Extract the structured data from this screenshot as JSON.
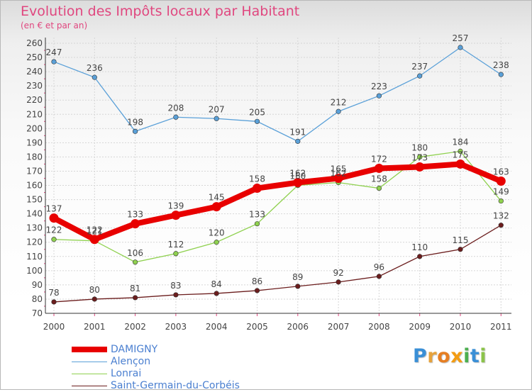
{
  "header": {
    "title": "Evolution des Impôts locaux par Habitant",
    "subtitle": "(en € et par an)"
  },
  "logo": {
    "letters": [
      "P",
      "r",
      "o",
      "x",
      "i",
      "t",
      "i"
    ],
    "colors": [
      "#3a8fd6",
      "#e6a23c",
      "#e67e22",
      "#f39c12",
      "#4caf50",
      "#3a8fd6",
      "#8bc34a"
    ]
  },
  "chart_data": {
    "type": "line",
    "title": "Evolution des Impôts locaux par Habitant",
    "subtitle": "(en € et par an)",
    "xlabel": "",
    "ylabel": "",
    "categories": [
      "2000",
      "2001",
      "2002",
      "2003",
      "2004",
      "2005",
      "2006",
      "2007",
      "2008",
      "2009",
      "2010",
      "2011"
    ],
    "ylim": [
      70,
      260
    ],
    "yticks": [
      70,
      80,
      90,
      100,
      110,
      120,
      130,
      140,
      150,
      160,
      170,
      180,
      190,
      200,
      210,
      220,
      230,
      240,
      250,
      260
    ],
    "grid": true,
    "legend_position": "bottom-left",
    "series": [
      {
        "name": "Saint-Germain-du-Corbéis",
        "color": "#6b1d1d",
        "emphasis": false,
        "values": [
          78,
          80,
          81,
          83,
          84,
          86,
          89,
          92,
          96,
          110,
          115,
          132
        ]
      },
      {
        "name": "Lonrai",
        "color": "#8fd14f",
        "emphasis": false,
        "values": [
          122,
          121,
          106,
          112,
          120,
          133,
          160,
          162,
          158,
          180,
          184,
          149
        ]
      },
      {
        "name": "Alençon",
        "color": "#5aa0d8",
        "emphasis": false,
        "values": [
          247,
          236,
          198,
          208,
          207,
          205,
          191,
          212,
          223,
          237,
          257,
          238
        ]
      },
      {
        "name": "DAMIGNY",
        "color": "#e80000",
        "emphasis": true,
        "values": [
          137,
          122,
          133,
          139,
          145,
          158,
          162,
          165,
          172,
          173,
          175,
          163
        ]
      }
    ],
    "legend_order": [
      "DAMIGNY",
      "Alençon",
      "Lonrai",
      "Saint-Germain-du-Corbéis"
    ]
  }
}
